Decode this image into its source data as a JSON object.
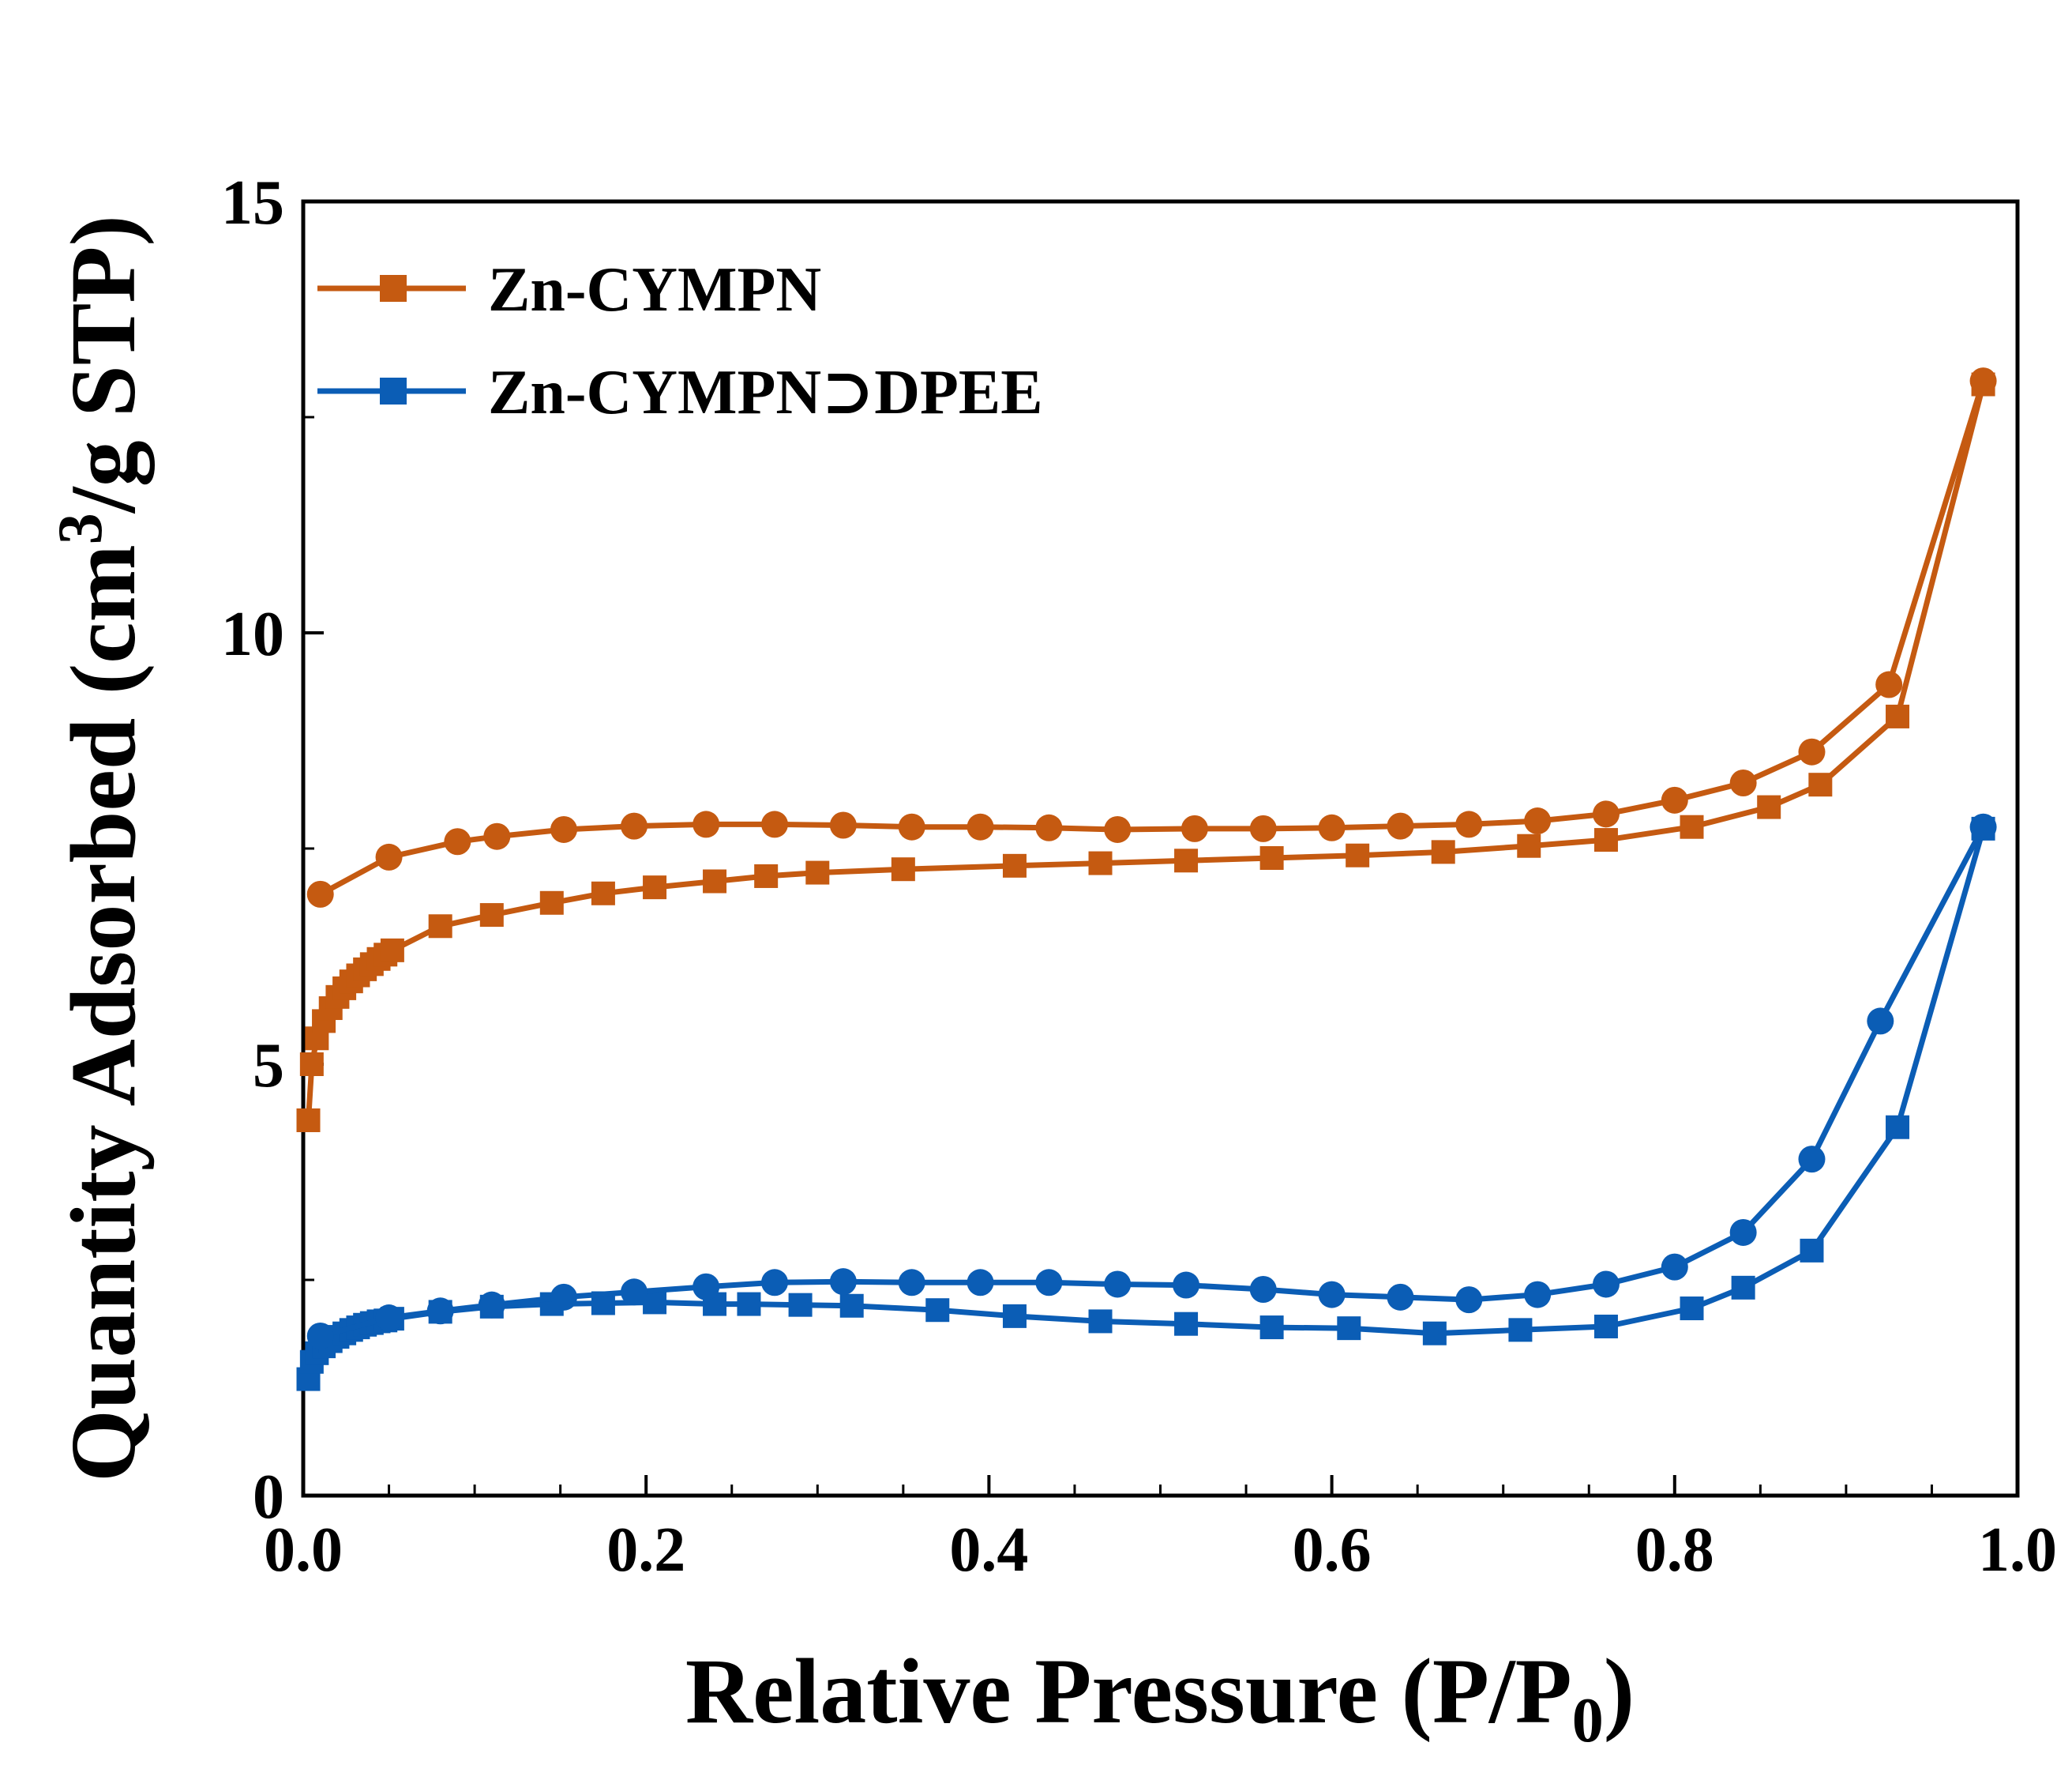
{
  "chart_data": {
    "type": "line",
    "title": "",
    "xlabel": "Relative Pressure (P/P0)",
    "xlabel_parts": {
      "main": "Relative Pressure (P/P",
      "sub": "0",
      "end": ")"
    },
    "ylabel": "Quantity Adsorbed (cm3/g STP)",
    "ylabel_parts": {
      "main": "Quantity Adsorbed (cm",
      "sup": "3",
      "end": "/g STP)"
    },
    "xlim": [
      0.0,
      1.0
    ],
    "ylim": [
      0,
      15
    ],
    "x_ticks": [
      "0.0",
      "0.2",
      "0.4",
      "0.6",
      "0.8",
      "1.0"
    ],
    "y_ticks": [
      "0",
      "5",
      "10",
      "15"
    ],
    "grid": false,
    "legend_position": "top-left",
    "series": [
      {
        "name": "Zn-CYMPN",
        "color": "#C55A11",
        "branch": "adsorption",
        "marker": "square",
        "x": [
          0.003,
          0.005,
          0.008,
          0.012,
          0.016,
          0.02,
          0.024,
          0.028,
          0.032,
          0.036,
          0.04,
          0.044,
          0.048,
          0.052,
          0.08,
          0.11,
          0.145,
          0.175,
          0.205,
          0.24,
          0.27,
          0.3,
          0.35,
          0.415,
          0.465,
          0.515,
          0.565,
          0.615,
          0.665,
          0.715,
          0.76,
          0.81,
          0.855,
          0.885,
          0.93,
          0.98
        ],
        "y": [
          4.35,
          5.0,
          5.3,
          5.5,
          5.65,
          5.78,
          5.88,
          5.96,
          6.03,
          6.1,
          6.16,
          6.22,
          6.27,
          6.32,
          6.6,
          6.73,
          6.87,
          6.98,
          7.05,
          7.12,
          7.18,
          7.22,
          7.26,
          7.3,
          7.33,
          7.36,
          7.39,
          7.42,
          7.46,
          7.53,
          7.6,
          7.75,
          7.98,
          8.24,
          9.03,
          12.88
        ]
      },
      {
        "name": "Zn-CYMPN",
        "color": "#C55A11",
        "branch": "desorption",
        "marker": "circle",
        "x": [
          0.98,
          0.925,
          0.88,
          0.84,
          0.8,
          0.76,
          0.72,
          0.68,
          0.64,
          0.6,
          0.56,
          0.52,
          0.475,
          0.435,
          0.395,
          0.355,
          0.315,
          0.275,
          0.235,
          0.193,
          0.152,
          0.113,
          0.09,
          0.05,
          0.01
        ],
        "y": [
          12.92,
          9.4,
          8.62,
          8.26,
          8.06,
          7.9,
          7.82,
          7.78,
          7.76,
          7.74,
          7.73,
          7.73,
          7.72,
          7.74,
          7.75,
          7.75,
          7.77,
          7.78,
          7.78,
          7.76,
          7.72,
          7.64,
          7.58,
          7.4,
          6.97
        ]
      },
      {
        "name": "Zn-CYMPN⊃DPEE",
        "color": "#0B5DB5",
        "branch": "adsorption",
        "marker": "square",
        "x": [
          0.003,
          0.005,
          0.008,
          0.012,
          0.016,
          0.02,
          0.024,
          0.028,
          0.032,
          0.036,
          0.04,
          0.044,
          0.048,
          0.052,
          0.08,
          0.11,
          0.145,
          0.175,
          0.205,
          0.24,
          0.26,
          0.29,
          0.32,
          0.37,
          0.415,
          0.465,
          0.515,
          0.565,
          0.61,
          0.66,
          0.71,
          0.76,
          0.81,
          0.84,
          0.88,
          0.93,
          0.98
        ],
        "y": [
          1.35,
          1.55,
          1.65,
          1.73,
          1.79,
          1.84,
          1.88,
          1.92,
          1.95,
          1.98,
          2.0,
          2.02,
          2.03,
          2.05,
          2.13,
          2.19,
          2.22,
          2.23,
          2.24,
          2.22,
          2.22,
          2.21,
          2.2,
          2.15,
          2.08,
          2.02,
          1.99,
          1.95,
          1.94,
          1.88,
          1.92,
          1.96,
          2.17,
          2.41,
          2.84,
          4.27,
          7.73
        ]
      },
      {
        "name": "Zn-CYMPN⊃DPEE",
        "color": "#0B5DB5",
        "branch": "desorption",
        "marker": "circle",
        "x": [
          0.98,
          0.92,
          0.88,
          0.84,
          0.8,
          0.76,
          0.72,
          0.68,
          0.64,
          0.6,
          0.56,
          0.515,
          0.475,
          0.435,
          0.395,
          0.355,
          0.315,
          0.275,
          0.235,
          0.193,
          0.152,
          0.11,
          0.08,
          0.05,
          0.01
        ],
        "y": [
          7.75,
          5.5,
          3.9,
          3.05,
          2.65,
          2.45,
          2.33,
          2.27,
          2.3,
          2.33,
          2.39,
          2.44,
          2.45,
          2.47,
          2.47,
          2.47,
          2.48,
          2.47,
          2.42,
          2.36,
          2.3,
          2.21,
          2.14,
          2.06,
          1.85
        ]
      }
    ]
  }
}
